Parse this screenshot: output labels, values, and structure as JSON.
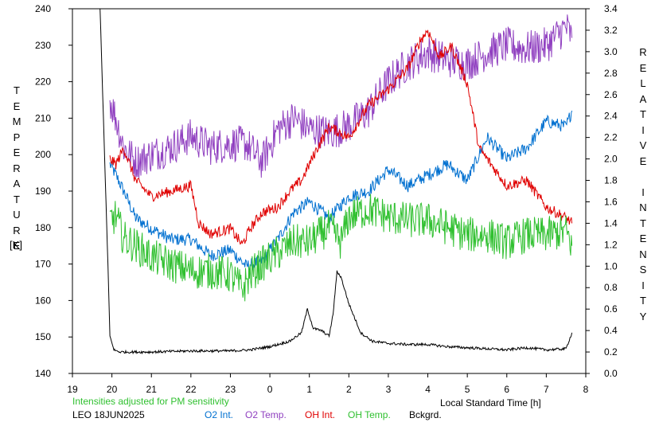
{
  "chart_data": {
    "type": "line",
    "left_axis": {
      "label_letters": [
        "T",
        "E",
        "M",
        "P",
        "E",
        "R",
        "A",
        "T",
        "U",
        "R",
        "E"
      ],
      "unit": "[K]",
      "range": [
        140,
        240
      ],
      "ticks": [
        "140",
        "150",
        "160",
        "170",
        "180",
        "190",
        "200",
        "210",
        "220",
        "230",
        "240"
      ]
    },
    "right_axis": {
      "label_words": [
        "RELATIVE",
        "INTENSITY"
      ],
      "range": [
        0.0,
        3.4
      ],
      "ticks": [
        "0.0",
        "0.2",
        "0.4",
        "0.6",
        "0.8",
        "1.0",
        "1.2",
        "1.4",
        "1.6",
        "1.8",
        "2.0",
        "2.2",
        "2.4",
        "2.6",
        "2.8",
        "3.0",
        "3.2",
        "3.4"
      ]
    },
    "x_axis": {
      "label": "Local Standard Time [h]",
      "range": [
        19,
        8
      ],
      "ticks": [
        "19",
        "20",
        "21",
        "22",
        "23",
        "0",
        "1",
        "2",
        "3",
        "4",
        "5",
        "6",
        "7",
        "8"
      ]
    },
    "footnote": "Intensities adjusted for PM sensitivity",
    "station_date": "LEO 18JUN2025",
    "series": [
      {
        "name": "O2 Int.",
        "axis": "right",
        "color": "#0070d0",
        "x": [
          19.95,
          20.1,
          20.3,
          20.6,
          21.0,
          21.5,
          22.0,
          22.5,
          23.0,
          23.4,
          23.8,
          24.2,
          24.6,
          25.0,
          25.5,
          26.0,
          26.5,
          27.0,
          27.5,
          28.0,
          28.5,
          29.0,
          29.5,
          30.0,
          30.5,
          31.0,
          31.5,
          31.65
        ],
        "y": [
          1.95,
          1.85,
          1.7,
          1.45,
          1.35,
          1.25,
          1.25,
          1.1,
          1.15,
          1.0,
          1.05,
          1.25,
          1.5,
          1.6,
          1.45,
          1.65,
          1.7,
          1.9,
          1.75,
          1.85,
          1.95,
          1.8,
          2.2,
          2.0,
          2.1,
          2.35,
          2.3,
          2.45
        ]
      },
      {
        "name": "O2 Temp.",
        "axis": "left",
        "color": "#9040c0",
        "x": [
          19.95,
          20.1,
          20.3,
          20.6,
          21.0,
          21.5,
          22.0,
          22.5,
          23.0,
          23.4,
          23.8,
          24.2,
          24.6,
          25.0,
          25.5,
          26.0,
          26.5,
          27.0,
          27.5,
          28.0,
          28.5,
          29.0,
          29.5,
          30.0,
          30.5,
          31.0,
          31.5,
          31.65
        ],
        "y": [
          215,
          210,
          202,
          198,
          200,
          202,
          205,
          202,
          203,
          203,
          198,
          207,
          210,
          207,
          206,
          208,
          212,
          220,
          225,
          228,
          226,
          225,
          228,
          230,
          229,
          230,
          235,
          232
        ]
      },
      {
        "name": "OH Int.",
        "axis": "right",
        "color": "#e00000",
        "x": [
          19.95,
          20.1,
          20.3,
          20.6,
          21.0,
          21.5,
          22.0,
          22.2,
          22.5,
          23.0,
          23.3,
          23.5,
          23.8,
          24.2,
          24.5,
          24.8,
          25.2,
          25.5,
          26.0,
          26.5,
          27.0,
          27.5,
          27.8,
          28.0,
          28.3,
          28.6,
          29.0,
          29.3,
          29.6,
          30.0,
          30.5,
          31.0,
          31.5,
          31.65
        ],
        "y": [
          2.0,
          1.95,
          2.1,
          1.8,
          1.65,
          1.7,
          1.75,
          1.4,
          1.3,
          1.35,
          1.2,
          1.35,
          1.5,
          1.55,
          1.7,
          1.8,
          2.1,
          2.3,
          2.2,
          2.5,
          2.65,
          2.85,
          3.1,
          3.2,
          2.95,
          3.05,
          2.7,
          2.1,
          1.95,
          1.75,
          1.8,
          1.55,
          1.45,
          1.4
        ]
      },
      {
        "name": "OH Temp.",
        "axis": "left",
        "color": "#30c030",
        "x": [
          19.95,
          20.1,
          20.3,
          20.6,
          21.0,
          21.5,
          22.0,
          22.5,
          23.0,
          23.3,
          23.5,
          23.8,
          24.2,
          24.6,
          25.0,
          25.5,
          25.8,
          26.0,
          26.5,
          27.0,
          27.5,
          28.0,
          28.5,
          29.0,
          29.5,
          30.0,
          30.5,
          31.0,
          31.5,
          31.65
        ],
        "y": [
          182,
          183,
          177,
          175,
          172,
          170,
          168,
          168,
          167,
          163,
          167,
          170,
          173,
          176,
          176,
          180,
          176,
          183,
          185,
          183,
          182,
          182,
          180,
          178,
          178,
          176,
          178,
          178,
          179,
          175
        ]
      },
      {
        "name": "Bckgrd.",
        "axis": "right",
        "color": "#000000",
        "x": [
          19.7,
          19.8,
          19.9,
          19.95,
          20.05,
          20.2,
          20.5,
          21.0,
          22.0,
          23.0,
          23.5,
          24.0,
          24.5,
          24.8,
          24.95,
          25.1,
          25.3,
          25.5,
          25.6,
          25.7,
          25.8,
          26.0,
          26.3,
          26.6,
          27.0,
          27.5,
          28.0,
          28.5,
          29.0,
          29.5,
          30.0,
          30.5,
          31.0,
          31.5,
          31.65
        ],
        "y": [
          3.4,
          2.2,
          1.0,
          0.35,
          0.22,
          0.2,
          0.2,
          0.2,
          0.21,
          0.21,
          0.22,
          0.25,
          0.3,
          0.38,
          0.6,
          0.42,
          0.4,
          0.35,
          0.55,
          0.95,
          0.9,
          0.65,
          0.38,
          0.3,
          0.28,
          0.27,
          0.27,
          0.25,
          0.24,
          0.23,
          0.22,
          0.24,
          0.22,
          0.23,
          0.38
        ]
      }
    ]
  }
}
